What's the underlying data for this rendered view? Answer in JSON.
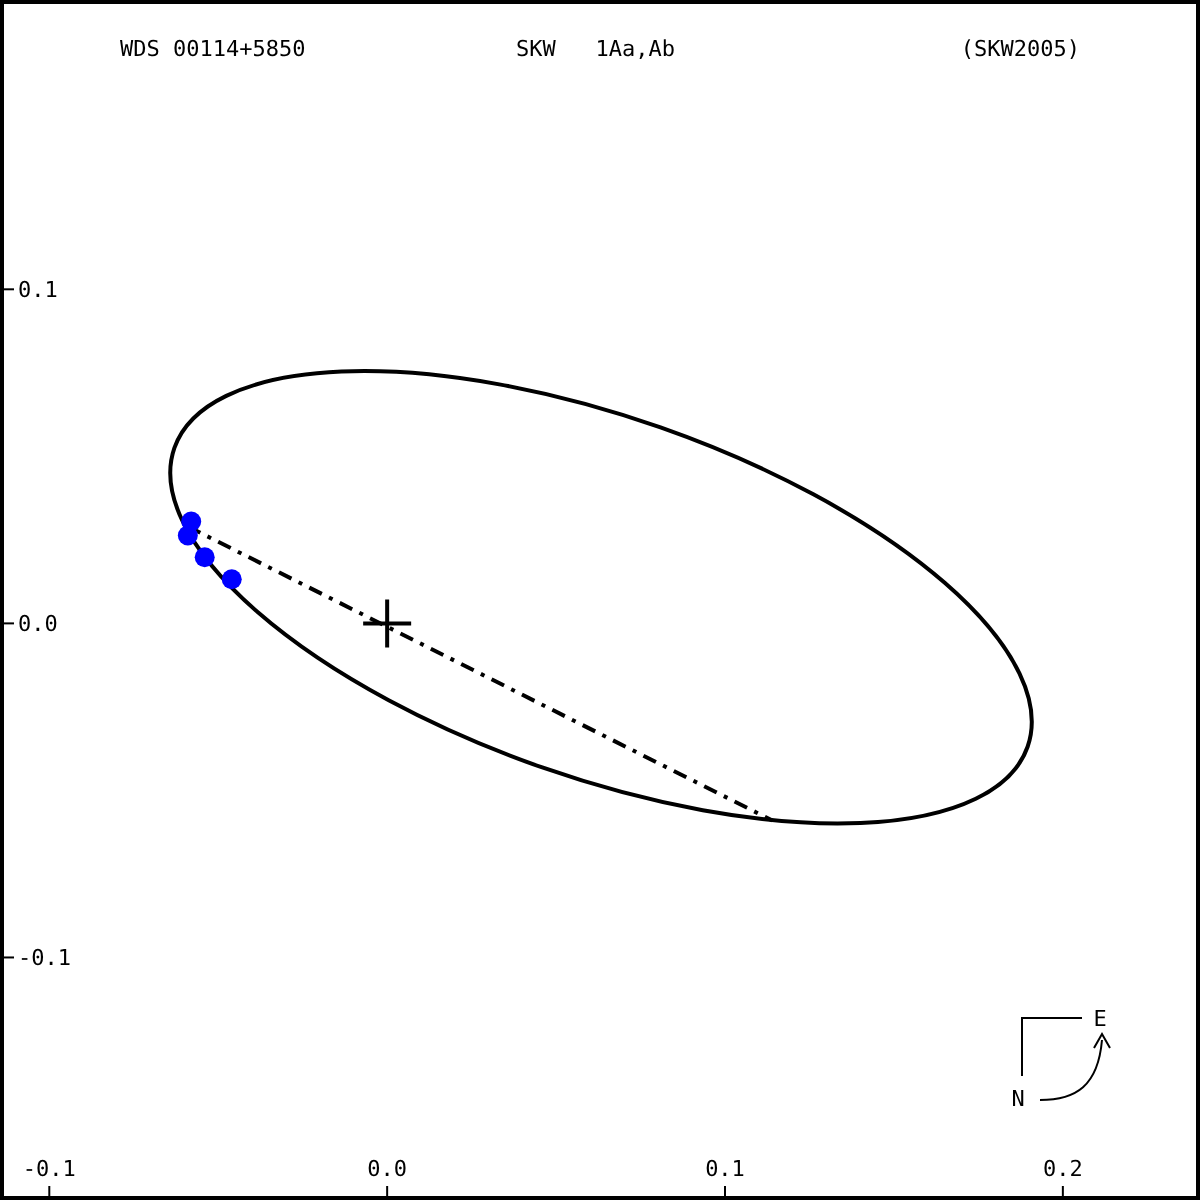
{
  "chart_data": {
    "type": "line",
    "title": "WDS 00114+5850",
    "subtitle": "SKW   1Aa,Ab",
    "annotations": [
      "(SKW2005)",
      "N",
      "E"
    ],
    "xlim": [
      -0.114,
      0.24
    ],
    "ylim": [
      -0.172,
      0.186
    ],
    "xticks": [
      -0.1,
      {
        "value": 0,
        "label": "0.0"
      },
      0.1,
      0.2
    ],
    "yticks": [
      -0.1,
      {
        "value": 0,
        "label": "0.0"
      },
      0.1
    ],
    "grid": false,
    "series": [
      {
        "color": "#000000",
        "line_style": "dashed",
        "marker": "none",
        "x": [
          -0.059,
          0.114
        ],
        "values": [
          0.029,
          -0.059
        ]
      },
      {
        "type": "scatter",
        "color": "#0000ff",
        "marker": "circle",
        "x": [
          -0.058,
          -0.059,
          -0.054,
          -0.046
        ],
        "values": [
          0.0305,
          0.0263,
          0.0198,
          0.0132
        ]
      }
    ]
  }
}
